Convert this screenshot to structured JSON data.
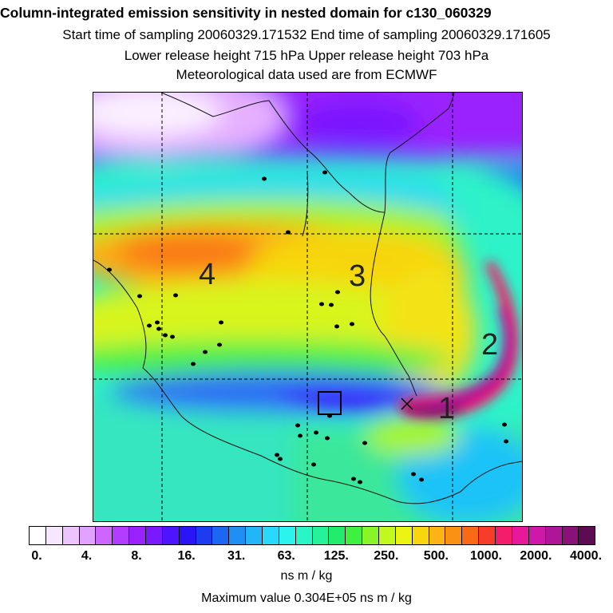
{
  "header": {
    "title": "Column-integrated emission sensitivity in nested domain for c130_060329",
    "sampling": "Start time of sampling 20060329.171532     End time of sampling 20060329.171605",
    "release": "Lower release height  715 hPa        Upper release height  703 hPa",
    "met": "Meteorological data used are from ECMWF"
  },
  "map": {
    "grid_labels": [
      "4",
      "3",
      "2",
      "1"
    ]
  },
  "colorbar": {
    "colors": [
      "#ffffff",
      "#f7e6ff",
      "#eec4ff",
      "#e2a2ff",
      "#cc66ff",
      "#b23cff",
      "#9a22ff",
      "#7a18ff",
      "#4f14ff",
      "#2b14f5",
      "#1c3cf0",
      "#1b66f2",
      "#1e90f5",
      "#22b5f8",
      "#29d9fb",
      "#2df3ef",
      "#2af5c6",
      "#26f29a",
      "#22ec6b",
      "#3ef040",
      "#88f528",
      "#c2f81d",
      "#ecf414",
      "#f7d50f",
      "#fab414",
      "#fb9114",
      "#fa6a14",
      "#f73c2c",
      "#f41d6b",
      "#e8189b",
      "#cd18aa",
      "#ae1598",
      "#8a1178",
      "#5e0c52"
    ],
    "tick_labels": [
      "0.",
      "4.",
      "8.",
      "16.",
      "31.",
      "63.",
      "125.",
      "250.",
      "500.",
      "1000.",
      "2000.",
      "4000."
    ],
    "units": "ns m / kg",
    "max_text": "Maximum value  0.304E+05 ns m / kg"
  }
}
